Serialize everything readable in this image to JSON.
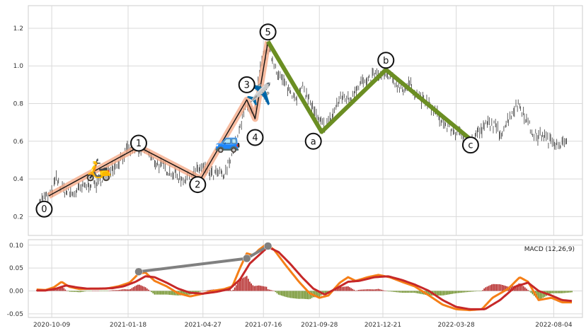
{
  "chart_data": [
    {
      "type": "line",
      "title": "",
      "xlabel": "",
      "ylabel": "",
      "x_start": "2020-09-08",
      "x_end": "2022-09-11",
      "ylim": [
        0.1,
        1.32
      ],
      "y_ticks": [
        "0.2",
        "0.4",
        "0.6",
        "0.8",
        "1.0",
        "1.2"
      ],
      "y_tick_values": [
        0.2,
        0.4,
        0.6,
        0.8,
        1.0,
        1.2
      ],
      "x_ticks": [
        "2020-10-09",
        "2021-01-18",
        "2021-04-27",
        "2021-07-16",
        "2021-09-28",
        "2021-12-21",
        "2022-03-28",
        "2022-08-04"
      ],
      "grid": true,
      "price_bars": {
        "description_color": "#333333",
        "close": [
          [
            "2020-09-23",
            0.29
          ],
          [
            "2020-10-01",
            0.3
          ],
          [
            "2020-10-09",
            0.32
          ],
          [
            "2020-10-15",
            0.4
          ],
          [
            "2020-10-22",
            0.35
          ],
          [
            "2020-10-29",
            0.33
          ],
          [
            "2020-11-06",
            0.32
          ],
          [
            "2020-11-14",
            0.34
          ],
          [
            "2020-11-22",
            0.36
          ],
          [
            "2020-12-01",
            0.38
          ],
          [
            "2020-12-09",
            0.37
          ],
          [
            "2020-12-17",
            0.42
          ],
          [
            "2020-12-25",
            0.46
          ],
          [
            "2021-01-02",
            0.47
          ],
          [
            "2021-01-10",
            0.52
          ],
          [
            "2021-01-18",
            0.55
          ],
          [
            "2021-01-26",
            0.57
          ],
          [
            "2021-02-03",
            0.54
          ],
          [
            "2021-02-11",
            0.56
          ],
          [
            "2021-02-19",
            0.5
          ],
          [
            "2021-02-27",
            0.48
          ],
          [
            "2021-03-07",
            0.46
          ],
          [
            "2021-03-15",
            0.44
          ],
          [
            "2021-03-23",
            0.42
          ],
          [
            "2021-03-31",
            0.4
          ],
          [
            "2021-04-08",
            0.41
          ],
          [
            "2021-04-16",
            0.43
          ],
          [
            "2021-04-24",
            0.46
          ],
          [
            "2021-05-02",
            0.44
          ],
          [
            "2021-05-10",
            0.42
          ],
          [
            "2021-05-18",
            0.43
          ],
          [
            "2021-05-26",
            0.41
          ],
          [
            "2021-06-03",
            0.52
          ],
          [
            "2021-06-11",
            0.6
          ],
          [
            "2021-06-19",
            0.72
          ],
          [
            "2021-06-24",
            0.82
          ],
          [
            "2021-06-30",
            0.76
          ],
          [
            "2021-07-05",
            0.72
          ],
          [
            "2021-07-10",
            0.92
          ],
          [
            "2021-07-16",
            1.05
          ],
          [
            "2021-07-22",
            1.1
          ],
          [
            "2021-07-29",
            1.03
          ],
          [
            "2021-08-06",
            0.95
          ],
          [
            "2021-08-14",
            0.9
          ],
          [
            "2021-08-22",
            0.86
          ],
          [
            "2021-08-30",
            0.84
          ],
          [
            "2021-09-07",
            0.88
          ],
          [
            "2021-09-15",
            0.82
          ],
          [
            "2021-09-22",
            0.75
          ],
          [
            "2021-09-28",
            0.7
          ],
          [
            "2021-10-06",
            0.68
          ],
          [
            "2021-10-14",
            0.72
          ],
          [
            "2021-10-22",
            0.8
          ],
          [
            "2021-10-30",
            0.84
          ],
          [
            "2021-11-07",
            0.82
          ],
          [
            "2021-11-15",
            0.88
          ],
          [
            "2021-11-23",
            0.92
          ],
          [
            "2021-12-01",
            0.9
          ],
          [
            "2021-12-09",
            0.96
          ],
          [
            "2021-12-17",
            0.94
          ],
          [
            "2021-12-25",
            0.95
          ],
          [
            "2022-01-02",
            0.93
          ],
          [
            "2022-01-10",
            0.9
          ],
          [
            "2022-01-18",
            0.88
          ],
          [
            "2022-01-26",
            0.9
          ],
          [
            "2022-02-03",
            0.86
          ],
          [
            "2022-02-11",
            0.82
          ],
          [
            "2022-02-19",
            0.8
          ],
          [
            "2022-02-27",
            0.76
          ],
          [
            "2022-03-07",
            0.72
          ],
          [
            "2022-03-15",
            0.68
          ],
          [
            "2022-03-23",
            0.66
          ],
          [
            "2022-03-31",
            0.64
          ],
          [
            "2022-04-08",
            0.62
          ],
          [
            "2022-04-16",
            0.58
          ],
          [
            "2022-04-24",
            0.64
          ],
          [
            "2022-05-02",
            0.66
          ],
          [
            "2022-05-10",
            0.7
          ],
          [
            "2022-05-18",
            0.68
          ],
          [
            "2022-05-26",
            0.64
          ],
          [
            "2022-06-03",
            0.7
          ],
          [
            "2022-06-11",
            0.76
          ],
          [
            "2022-06-19",
            0.8
          ],
          [
            "2022-06-27",
            0.74
          ],
          [
            "2022-07-05",
            0.66
          ],
          [
            "2022-07-13",
            0.62
          ],
          [
            "2022-07-21",
            0.64
          ],
          [
            "2022-07-29",
            0.6
          ],
          [
            "2022-08-06",
            0.6
          ],
          [
            "2022-08-14",
            0.59
          ],
          [
            "2022-08-22",
            0.58
          ]
        ]
      },
      "impulse_wave": {
        "color": "#f4a582",
        "points": [
          {
            "label": "0",
            "date": "2020-10-05",
            "value": 0.31
          },
          {
            "label": "1",
            "date": "2021-02-01",
            "value": 0.57
          },
          {
            "label": "2",
            "date": "2021-04-24",
            "value": 0.4
          },
          {
            "label": "3",
            "date": "2021-06-24",
            "value": 0.82
          },
          {
            "label": "4",
            "date": "2021-07-05",
            "value": 0.72
          },
          {
            "label": "5",
            "date": "2021-07-22",
            "value": 1.13
          }
        ]
      },
      "corrective_wave": {
        "color": "#6b8e23",
        "points": [
          {
            "label": "5",
            "date": "2021-07-22",
            "value": 1.13
          },
          {
            "label": "a",
            "date": "2021-10-01",
            "value": 0.65
          },
          {
            "label": "b",
            "date": "2021-12-25",
            "value": 0.98
          },
          {
            "label": "c",
            "date": "2022-04-16",
            "value": 0.61
          }
        ]
      },
      "wave_label_positions": [
        {
          "label": "0",
          "date": "2020-09-29",
          "value": 0.24
        },
        {
          "label": "1",
          "date": "2021-02-01",
          "value": 0.59
        },
        {
          "label": "2",
          "date": "2021-04-20",
          "value": 0.37
        },
        {
          "label": "3",
          "date": "2021-06-24",
          "value": 0.9
        },
        {
          "label": "4",
          "date": "2021-07-05",
          "value": 0.62
        },
        {
          "label": "5",
          "date": "2021-07-22",
          "value": 1.18
        },
        {
          "label": "a",
          "date": "2021-09-20",
          "value": 0.6
        },
        {
          "label": "b",
          "date": "2021-12-25",
          "value": 1.03
        },
        {
          "label": "c",
          "date": "2022-04-16",
          "value": 0.58
        }
      ],
      "emoji_markers": [
        {
          "icon": "scooter-icon",
          "glyph": "🛵",
          "date": "2020-12-10",
          "value": 0.45
        },
        {
          "icon": "car-icon",
          "glyph": "🚙",
          "date": "2021-05-30",
          "value": 0.6
        },
        {
          "icon": "airplane-icon",
          "glyph": "✈️",
          "date": "2021-07-10",
          "value": 0.85
        }
      ]
    },
    {
      "type": "line",
      "title": "",
      "legend_text": "MACD (12,26,9)",
      "legend_position": "top-right",
      "ylim": [
        -0.058,
        0.112
      ],
      "y_ticks": [
        "0.10",
        "0.05",
        "0.00",
        "-0.05"
      ],
      "y_tick_values": [
        0.1,
        0.05,
        0.0,
        -0.05
      ],
      "x_ticks": [
        "2020-10-09",
        "2021-01-18",
        "2021-04-27",
        "2021-07-16",
        "2021-09-28",
        "2021-12-21",
        "2022-03-28",
        "2022-08-04"
      ],
      "grid": true,
      "series": [
        {
          "color": "#f57f17",
          "points": [
            [
              "2020-09-19",
              0.003
            ],
            [
              "2020-10-01",
              0.002
            ],
            [
              "2020-10-12",
              0.008
            ],
            [
              "2020-10-22",
              0.02
            ],
            [
              "2020-11-01",
              0.009
            ],
            [
              "2020-11-15",
              0.004
            ],
            [
              "2020-12-01",
              0.005
            ],
            [
              "2020-12-20",
              0.005
            ],
            [
              "2021-01-05",
              0.01
            ],
            [
              "2021-01-20",
              0.018
            ],
            [
              "2021-02-01",
              0.038
            ],
            [
              "2021-02-10",
              0.04
            ],
            [
              "2021-02-22",
              0.022
            ],
            [
              "2021-03-10",
              0.01
            ],
            [
              "2021-03-25",
              -0.005
            ],
            [
              "2021-04-10",
              -0.012
            ],
            [
              "2021-04-27",
              -0.006
            ],
            [
              "2021-05-10",
              0.0
            ],
            [
              "2021-05-25",
              0.004
            ],
            [
              "2021-06-05",
              0.01
            ],
            [
              "2021-06-15",
              0.05
            ],
            [
              "2021-06-24",
              0.082
            ],
            [
              "2021-07-03",
              0.078
            ],
            [
              "2021-07-10",
              0.09
            ],
            [
              "2021-07-20",
              0.102
            ],
            [
              "2021-07-30",
              0.09
            ],
            [
              "2021-08-15",
              0.055
            ],
            [
              "2021-09-01",
              0.02
            ],
            [
              "2021-09-15",
              -0.005
            ],
            [
              "2021-09-28",
              -0.015
            ],
            [
              "2021-10-10",
              -0.01
            ],
            [
              "2021-10-25",
              0.018
            ],
            [
              "2021-11-05",
              0.03
            ],
            [
              "2021-11-15",
              0.022
            ],
            [
              "2021-12-01",
              0.03
            ],
            [
              "2021-12-15",
              0.035
            ],
            [
              "2021-12-30",
              0.03
            ],
            [
              "2022-01-15",
              0.02
            ],
            [
              "2022-02-01",
              0.01
            ],
            [
              "2022-02-20",
              -0.01
            ],
            [
              "2022-03-10",
              -0.03
            ],
            [
              "2022-03-28",
              -0.04
            ],
            [
              "2022-04-15",
              -0.042
            ],
            [
              "2022-05-01",
              -0.04
            ],
            [
              "2022-05-15",
              -0.015
            ],
            [
              "2022-06-05",
              0.005
            ],
            [
              "2022-06-20",
              0.03
            ],
            [
              "2022-07-01",
              0.02
            ],
            [
              "2022-07-15",
              -0.02
            ],
            [
              "2022-08-01",
              -0.015
            ],
            [
              "2022-08-15",
              -0.025
            ],
            [
              "2022-08-28",
              -0.025
            ]
          ]
        },
        {
          "color": "#c62828",
          "points": [
            [
              "2020-09-19",
              0.001
            ],
            [
              "2020-10-01",
              0.001
            ],
            [
              "2020-10-15",
              0.005
            ],
            [
              "2020-10-28",
              0.012
            ],
            [
              "2020-11-10",
              0.008
            ],
            [
              "2020-11-25",
              0.005
            ],
            [
              "2020-12-10",
              0.005
            ],
            [
              "2020-12-28",
              0.006
            ],
            [
              "2021-01-12",
              0.01
            ],
            [
              "2021-01-28",
              0.02
            ],
            [
              "2021-02-10",
              0.032
            ],
            [
              "2021-02-22",
              0.03
            ],
            [
              "2021-03-10",
              0.018
            ],
            [
              "2021-03-25",
              0.005
            ],
            [
              "2021-04-10",
              -0.004
            ],
            [
              "2021-04-27",
              -0.006
            ],
            [
              "2021-05-15",
              -0.002
            ],
            [
              "2021-06-01",
              0.004
            ],
            [
              "2021-06-15",
              0.025
            ],
            [
              "2021-06-28",
              0.06
            ],
            [
              "2021-07-10",
              0.078
            ],
            [
              "2021-07-22",
              0.096
            ],
            [
              "2021-08-05",
              0.085
            ],
            [
              "2021-08-20",
              0.06
            ],
            [
              "2021-09-05",
              0.03
            ],
            [
              "2021-09-20",
              0.005
            ],
            [
              "2021-10-05",
              -0.008
            ],
            [
              "2021-10-20",
              0.005
            ],
            [
              "2021-11-05",
              0.02
            ],
            [
              "2021-11-20",
              0.022
            ],
            [
              "2021-12-10",
              0.03
            ],
            [
              "2021-12-28",
              0.032
            ],
            [
              "2022-01-15",
              0.024
            ],
            [
              "2022-02-01",
              0.014
            ],
            [
              "2022-02-20",
              0.0
            ],
            [
              "2022-03-10",
              -0.02
            ],
            [
              "2022-03-28",
              -0.035
            ],
            [
              "2022-04-15",
              -0.04
            ],
            [
              "2022-05-05",
              -0.04
            ],
            [
              "2022-05-25",
              -0.02
            ],
            [
              "2022-06-15",
              0.01
            ],
            [
              "2022-07-01",
              0.018
            ],
            [
              "2022-07-15",
              0.0
            ],
            [
              "2022-08-01",
              -0.01
            ],
            [
              "2022-08-15",
              -0.02
            ],
            [
              "2022-08-28",
              -0.022
            ]
          ]
        }
      ],
      "histogram": {
        "positive_color": "#b22222",
        "negative_color": "#6b8e23",
        "note": "histogram = orange series minus red series"
      },
      "divergence_line": {
        "color": "#808080",
        "points": [
          {
            "date": "2021-02-01",
            "value": 0.042
          },
          {
            "date": "2021-06-24",
            "value": 0.071
          },
          {
            "date": "2021-07-22",
            "value": 0.098
          }
        ]
      }
    }
  ]
}
